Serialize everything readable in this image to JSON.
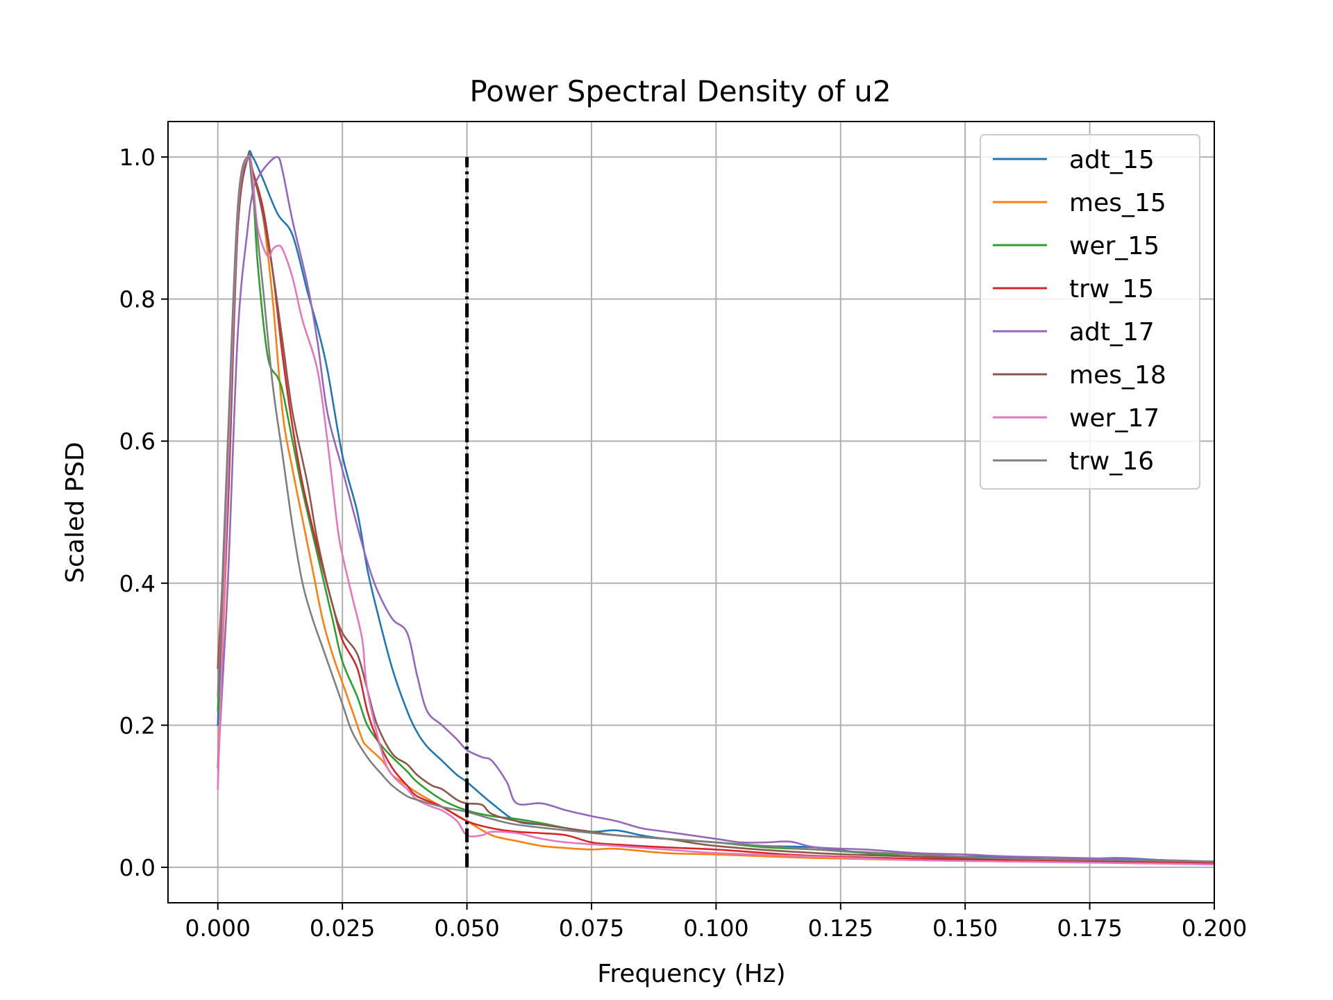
{
  "chart_data": {
    "type": "line",
    "title": "Power Spectral Density of u2",
    "xlabel": "Frequency (Hz)",
    "ylabel": "Scaled PSD",
    "xlim": [
      -0.01,
      0.2
    ],
    "ylim": [
      -0.05,
      1.05
    ],
    "xticks": [
      0.0,
      0.025,
      0.05,
      0.075,
      0.1,
      0.125,
      0.15,
      0.175,
      0.2
    ],
    "xtick_labels": [
      "0.000",
      "0.025",
      "0.050",
      "0.075",
      "0.100",
      "0.125",
      "0.150",
      "0.175",
      "0.200"
    ],
    "yticks": [
      0.0,
      0.2,
      0.4,
      0.6,
      0.8,
      1.0
    ],
    "ytick_labels": [
      "0.0",
      "0.2",
      "0.4",
      "0.6",
      "0.8",
      "1.0"
    ],
    "grid": true,
    "legend_position": "top-right",
    "reference_line": {
      "x": 0.05,
      "y_range": [
        0,
        1
      ],
      "style": "dash-dot",
      "color": "#000000"
    },
    "series": [
      {
        "name": "adt_15",
        "color": "#1f77b4",
        "x": [
          0.0,
          0.002,
          0.004,
          0.006,
          0.007,
          0.009,
          0.012,
          0.015,
          0.018,
          0.02,
          0.022,
          0.025,
          0.028,
          0.03,
          0.032,
          0.035,
          0.038,
          0.04,
          0.042,
          0.045,
          0.048,
          0.05,
          0.055,
          0.06,
          0.065,
          0.07,
          0.075,
          0.08,
          0.085,
          0.09,
          0.1,
          0.11,
          0.12,
          0.13,
          0.14,
          0.15,
          0.16,
          0.17,
          0.18,
          0.19,
          0.2
        ],
        "y": [
          0.2,
          0.55,
          0.9,
          1.0,
          1.0,
          0.97,
          0.92,
          0.89,
          0.81,
          0.76,
          0.7,
          0.58,
          0.5,
          0.42,
          0.36,
          0.28,
          0.22,
          0.19,
          0.17,
          0.15,
          0.13,
          0.12,
          0.09,
          0.065,
          0.06,
          0.055,
          0.05,
          0.052,
          0.045,
          0.04,
          0.035,
          0.03,
          0.028,
          0.02,
          0.015,
          0.015,
          0.014,
          0.01,
          0.013,
          0.01,
          0.008
        ]
      },
      {
        "name": "mes_15",
        "color": "#ff7f0e",
        "x": [
          0.0,
          0.002,
          0.004,
          0.006,
          0.007,
          0.009,
          0.011,
          0.013,
          0.015,
          0.017,
          0.019,
          0.021,
          0.023,
          0.025,
          0.027,
          0.029,
          0.03,
          0.033,
          0.035,
          0.037,
          0.04,
          0.045,
          0.05,
          0.055,
          0.06,
          0.065,
          0.07,
          0.075,
          0.08,
          0.09,
          0.1,
          0.12,
          0.14,
          0.16,
          0.18,
          0.2
        ],
        "y": [
          0.14,
          0.5,
          0.92,
          1.0,
          0.98,
          0.92,
          0.8,
          0.64,
          0.56,
          0.49,
          0.42,
          0.35,
          0.3,
          0.26,
          0.22,
          0.18,
          0.17,
          0.15,
          0.13,
          0.12,
          0.105,
          0.085,
          0.065,
          0.045,
          0.037,
          0.03,
          0.027,
          0.025,
          0.026,
          0.02,
          0.018,
          0.013,
          0.01,
          0.008,
          0.007,
          0.005
        ]
      },
      {
        "name": "wer_15",
        "color": "#2ca02c",
        "x": [
          0.0,
          0.002,
          0.004,
          0.006,
          0.007,
          0.008,
          0.01,
          0.012,
          0.013,
          0.015,
          0.017,
          0.02,
          0.023,
          0.025,
          0.028,
          0.03,
          0.033,
          0.035,
          0.038,
          0.04,
          0.045,
          0.05,
          0.055,
          0.06,
          0.065,
          0.07,
          0.075,
          0.08,
          0.09,
          0.1,
          0.11,
          0.12,
          0.13,
          0.14,
          0.15,
          0.16,
          0.18,
          0.2
        ],
        "y": [
          0.22,
          0.55,
          0.9,
          1.0,
          0.96,
          0.85,
          0.72,
          0.69,
          0.67,
          0.6,
          0.53,
          0.44,
          0.35,
          0.29,
          0.24,
          0.2,
          0.17,
          0.155,
          0.135,
          0.12,
          0.095,
          0.08,
          0.072,
          0.068,
          0.062,
          0.055,
          0.05,
          0.045,
          0.04,
          0.035,
          0.028,
          0.025,
          0.02,
          0.015,
          0.013,
          0.012,
          0.01,
          0.008
        ]
      },
      {
        "name": "trw_15",
        "color": "#d62728",
        "x": [
          0.0,
          0.002,
          0.004,
          0.006,
          0.007,
          0.009,
          0.011,
          0.013,
          0.015,
          0.017,
          0.02,
          0.023,
          0.025,
          0.028,
          0.03,
          0.032,
          0.035,
          0.038,
          0.04,
          0.045,
          0.05,
          0.055,
          0.06,
          0.065,
          0.07,
          0.075,
          0.08,
          0.09,
          0.1,
          0.11,
          0.12,
          0.14,
          0.16,
          0.18,
          0.2
        ],
        "y": [
          0.28,
          0.55,
          0.9,
          1.0,
          0.98,
          0.93,
          0.84,
          0.72,
          0.62,
          0.54,
          0.45,
          0.37,
          0.32,
          0.28,
          0.22,
          0.18,
          0.14,
          0.115,
          0.1,
          0.085,
          0.065,
          0.055,
          0.05,
          0.048,
          0.045,
          0.035,
          0.032,
          0.028,
          0.025,
          0.02,
          0.016,
          0.012,
          0.01,
          0.008,
          0.006
        ]
      },
      {
        "name": "adt_17",
        "color": "#9467bd",
        "x": [
          0.0,
          0.002,
          0.004,
          0.006,
          0.007,
          0.008,
          0.01,
          0.012,
          0.013,
          0.015,
          0.018,
          0.02,
          0.022,
          0.025,
          0.028,
          0.03,
          0.032,
          0.035,
          0.038,
          0.04,
          0.042,
          0.045,
          0.048,
          0.05,
          0.053,
          0.055,
          0.058,
          0.06,
          0.065,
          0.07,
          0.075,
          0.08,
          0.085,
          0.09,
          0.1,
          0.105,
          0.11,
          0.115,
          0.12,
          0.13,
          0.14,
          0.15,
          0.16,
          0.18,
          0.2
        ],
        "y": [
          0.14,
          0.4,
          0.75,
          0.9,
          0.95,
          0.97,
          0.99,
          1.0,
          0.98,
          0.91,
          0.82,
          0.74,
          0.64,
          0.56,
          0.48,
          0.43,
          0.39,
          0.35,
          0.33,
          0.27,
          0.22,
          0.2,
          0.18,
          0.165,
          0.155,
          0.15,
          0.12,
          0.09,
          0.09,
          0.08,
          0.072,
          0.065,
          0.055,
          0.05,
          0.04,
          0.035,
          0.035,
          0.036,
          0.028,
          0.025,
          0.02,
          0.018,
          0.015,
          0.012,
          0.008
        ]
      },
      {
        "name": "mes_18",
        "color": "#8c564b",
        "x": [
          0.0,
          0.002,
          0.004,
          0.006,
          0.007,
          0.009,
          0.011,
          0.013,
          0.015,
          0.018,
          0.02,
          0.023,
          0.025,
          0.028,
          0.03,
          0.032,
          0.035,
          0.038,
          0.04,
          0.043,
          0.045,
          0.048,
          0.05,
          0.053,
          0.055,
          0.06,
          0.065,
          0.07,
          0.08,
          0.09,
          0.1,
          0.12,
          0.14,
          0.16,
          0.18,
          0.2
        ],
        "y": [
          0.24,
          0.5,
          0.9,
          1.0,
          0.98,
          0.92,
          0.84,
          0.74,
          0.64,
          0.54,
          0.46,
          0.37,
          0.33,
          0.3,
          0.25,
          0.2,
          0.16,
          0.145,
          0.13,
          0.115,
          0.11,
          0.095,
          0.09,
          0.088,
          0.075,
          0.065,
          0.06,
          0.055,
          0.045,
          0.04,
          0.03,
          0.02,
          0.015,
          0.012,
          0.01,
          0.008
        ]
      },
      {
        "name": "wer_17",
        "color": "#e377c2",
        "x": [
          0.0,
          0.002,
          0.004,
          0.006,
          0.007,
          0.008,
          0.01,
          0.011,
          0.012,
          0.013,
          0.015,
          0.017,
          0.02,
          0.022,
          0.024,
          0.025,
          0.027,
          0.029,
          0.03,
          0.033,
          0.035,
          0.038,
          0.04,
          0.043,
          0.045,
          0.048,
          0.05,
          0.053,
          0.055,
          0.06,
          0.065,
          0.07,
          0.08,
          0.09,
          0.1,
          0.12,
          0.14,
          0.16,
          0.18,
          0.2
        ],
        "y": [
          0.11,
          0.55,
          0.92,
          1.0,
          0.97,
          0.9,
          0.86,
          0.87,
          0.875,
          0.87,
          0.83,
          0.77,
          0.7,
          0.6,
          0.48,
          0.44,
          0.38,
          0.32,
          0.25,
          0.16,
          0.13,
          0.11,
          0.095,
          0.085,
          0.08,
          0.065,
          0.045,
          0.045,
          0.05,
          0.048,
          0.04,
          0.035,
          0.03,
          0.025,
          0.02,
          0.015,
          0.01,
          0.008,
          0.006,
          0.004
        ]
      },
      {
        "name": "trw_16",
        "color": "#7f7f7f",
        "x": [
          0.0,
          0.002,
          0.004,
          0.006,
          0.007,
          0.009,
          0.011,
          0.013,
          0.015,
          0.017,
          0.019,
          0.021,
          0.023,
          0.025,
          0.027,
          0.03,
          0.033,
          0.035,
          0.038,
          0.04,
          0.045,
          0.05,
          0.055,
          0.06,
          0.07,
          0.08,
          0.09,
          0.1,
          0.12,
          0.14,
          0.16,
          0.18,
          0.2
        ],
        "y": [
          0.24,
          0.6,
          0.93,
          1.0,
          0.95,
          0.82,
          0.68,
          0.58,
          0.48,
          0.4,
          0.35,
          0.31,
          0.27,
          0.23,
          0.19,
          0.155,
          0.13,
          0.115,
          0.1,
          0.095,
          0.085,
          0.078,
          0.068,
          0.06,
          0.052,
          0.045,
          0.04,
          0.035,
          0.025,
          0.018,
          0.012,
          0.01,
          0.008
        ]
      }
    ]
  }
}
